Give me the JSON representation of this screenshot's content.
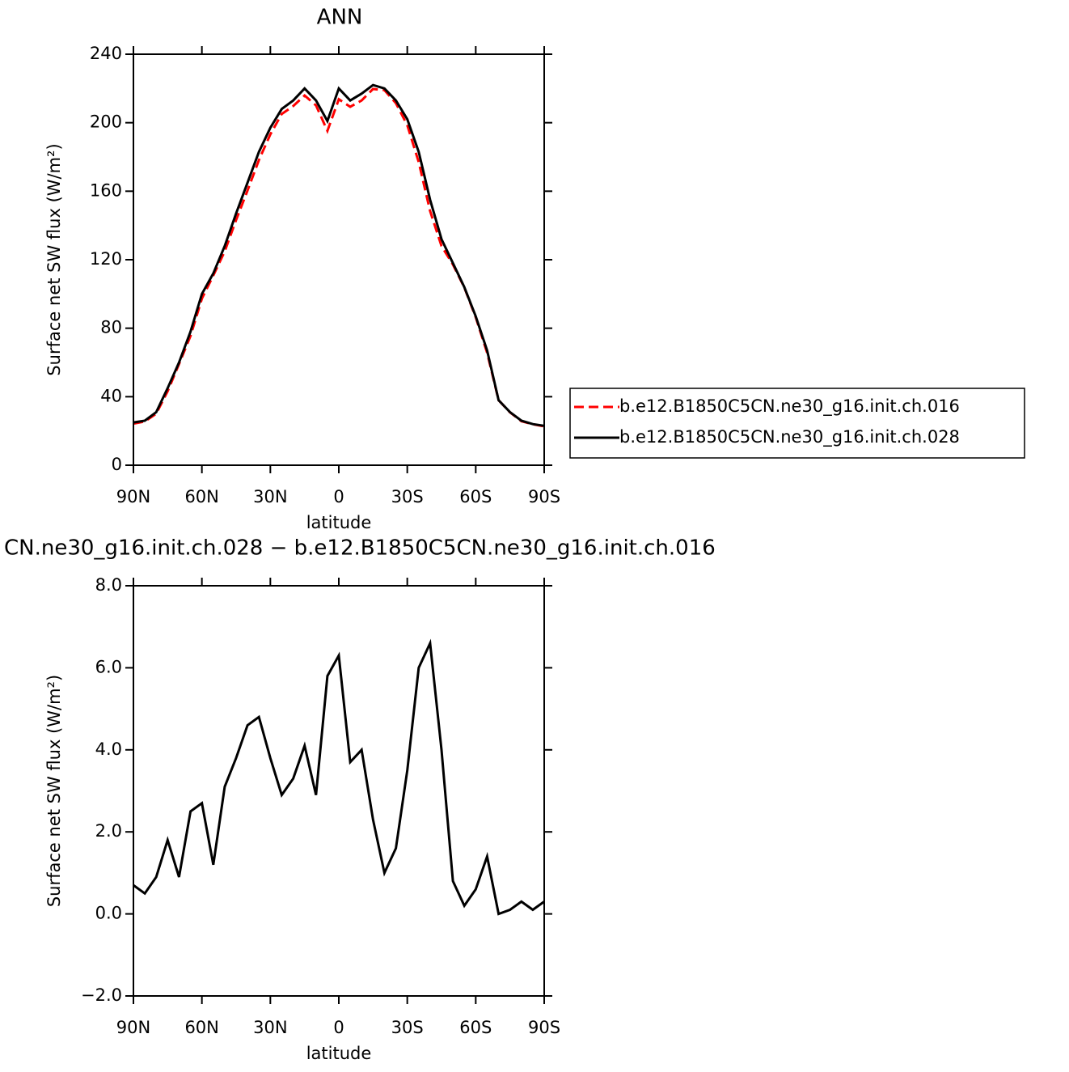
{
  "chart_data": [
    {
      "type": "line",
      "title": "ANN",
      "xlabel": "latitude",
      "ylabel": "Surface net SW flux (W/m²)",
      "x": [
        90,
        85,
        80,
        75,
        70,
        65,
        60,
        55,
        50,
        45,
        40,
        35,
        30,
        25,
        20,
        15,
        10,
        5,
        0,
        -5,
        -10,
        -15,
        -20,
        -25,
        -30,
        -35,
        -40,
        -45,
        -50,
        -55,
        -60,
        -65,
        -70,
        -75,
        -80,
        -85,
        -90
      ],
      "xlim": [
        90,
        -90
      ],
      "xticks": [
        {
          "value": 90,
          "label": "90N"
        },
        {
          "value": 60,
          "label": "60N"
        },
        {
          "value": 30,
          "label": "30N"
        },
        0,
        {
          "value": -30,
          "label": "30S"
        },
        {
          "value": -60,
          "label": "60S"
        },
        {
          "value": -90,
          "label": "90S"
        }
      ],
      "ylim": [
        0,
        240
      ],
      "yticks": [
        0,
        40,
        80,
        120,
        160,
        200,
        240
      ],
      "series": [
        {
          "name": "b.e12.B1850C5CN.ne30_g16.init.ch.016",
          "color": "#ff0000",
          "dashed": true,
          "values": [
            24.3,
            25.5,
            30.1,
            43.2,
            59.1,
            75.5,
            97.3,
            110.8,
            124.9,
            143.2,
            160.4,
            178.2,
            193.2,
            205.1,
            209.7,
            215.9,
            210.1,
            195.2,
            213.7,
            209.3,
            213,
            219.7,
            219,
            211.4,
            198.5,
            177,
            148.4,
            128,
            117.2,
            103.8,
            86.4,
            65.6,
            38,
            30.9,
            25.7,
            23.9,
            22.7
          ]
        },
        {
          "name": "b.e12.B1850C5CN.ne30_g16.init.ch.028",
          "color": "#000000",
          "dashed": false,
          "values": [
            25,
            26,
            31,
            45,
            60,
            78,
            100,
            112,
            128,
            147,
            165,
            183,
            197,
            208,
            213,
            220,
            213,
            201,
            220,
            213,
            217,
            222,
            220,
            213,
            202,
            183,
            155,
            132,
            118,
            104,
            87,
            67,
            38,
            31,
            26,
            24,
            23
          ]
        }
      ]
    },
    {
      "type": "line",
      "title": "CN.ne30_g16.init.ch.028 − b.e12.B1850C5CN.ne30_g16.init.ch.016",
      "xlabel": "latitude",
      "ylabel": "Surface net SW flux (W/m²)",
      "x": [
        90,
        85,
        80,
        75,
        70,
        65,
        60,
        55,
        50,
        45,
        40,
        35,
        30,
        25,
        20,
        15,
        10,
        5,
        0,
        -5,
        -10,
        -15,
        -20,
        -25,
        -30,
        -35,
        -40,
        -45,
        -50,
        -55,
        -60,
        -65,
        -70,
        -75,
        -80,
        -85,
        -90
      ],
      "xlim": [
        90,
        -90
      ],
      "xticks": [
        {
          "value": 90,
          "label": "90N"
        },
        {
          "value": 60,
          "label": "60N"
        },
        {
          "value": 30,
          "label": "30N"
        },
        0,
        {
          "value": -30,
          "label": "30S"
        },
        {
          "value": -60,
          "label": "60S"
        },
        {
          "value": -90,
          "label": "90S"
        }
      ],
      "ylim": [
        -2,
        8
      ],
      "yticks": [
        {
          "value": -2,
          "label": "−2.0"
        },
        {
          "value": 0,
          "label": "0.0"
        },
        {
          "value": 2,
          "label": "2.0"
        },
        {
          "value": 4,
          "label": "4.0"
        },
        {
          "value": 6,
          "label": "6.0"
        },
        {
          "value": 8,
          "label": "8.0"
        }
      ],
      "series": [
        {
          "color": "#000000",
          "dashed": false,
          "values": [
            0.7,
            0.5,
            0.9,
            1.8,
            0.9,
            2.5,
            2.7,
            1.2,
            3.1,
            3.8,
            4.6,
            4.8,
            3.8,
            2.9,
            3.3,
            4.1,
            2.9,
            5.8,
            6.3,
            3.7,
            4.0,
            2.3,
            1.0,
            1.6,
            3.5,
            6.0,
            6.6,
            4.0,
            0.8,
            0.2,
            0.6,
            1.4,
            0.0,
            0.1,
            0.3,
            0.1,
            0.3
          ]
        }
      ]
    }
  ]
}
